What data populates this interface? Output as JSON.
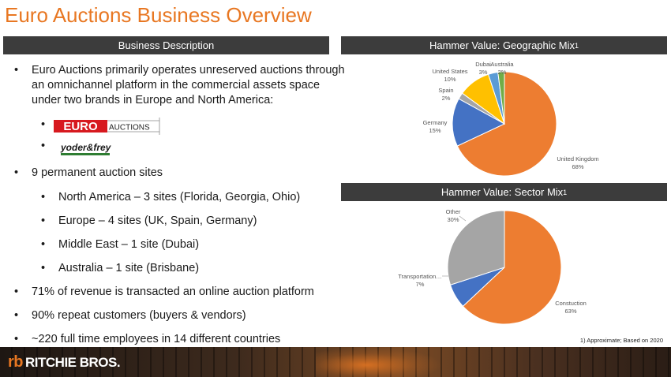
{
  "title": "Euro Auctions Business Overview",
  "headers": {
    "description": "Business Description",
    "geo": "Hammer Value: Geographic Mix",
    "sector": "Hammer Value: Sector Mix",
    "superscript": "1"
  },
  "description": {
    "items": [
      {
        "level": 1,
        "text": "Euro Auctions primarily operates unreserved auctions through an omnichannel platform in the commercial assets space under two brands in Europe and North America:"
      },
      {
        "level": 2,
        "text": ""
      },
      {
        "level": 2,
        "text": ""
      },
      {
        "level": 1,
        "text": "9 permanent auction sites"
      },
      {
        "level": 2,
        "text": "North America – 3 sites (Florida, Georgia, Ohio)"
      },
      {
        "level": 2,
        "text": "Europe – 4 sites (UK, Spain, Germany)"
      },
      {
        "level": 2,
        "text": "Middle East – 1 site (Dubai)"
      },
      {
        "level": 2,
        "text": "Australia – 1 site (Brisbane)"
      },
      {
        "level": 1,
        "text": "71% of revenue is transacted an online auction platform"
      },
      {
        "level": 1,
        "text": "90% repeat customers (buyers & vendors)"
      },
      {
        "level": 1,
        "text": "~220 full time employees in 14 different countries"
      }
    ],
    "bullet": "•"
  },
  "logos": {
    "euro_a": "EURO",
    "euro_b": "AUCTIONS",
    "yf": "yoder&frey"
  },
  "chart_data": [
    {
      "type": "pie",
      "title": "Hammer Value: Geographic Mix",
      "slices": [
        {
          "label": "United Kingdom",
          "pct_label": "68%",
          "value": 68,
          "color": "#ed7d31"
        },
        {
          "label": "Germany",
          "pct_label": "15%",
          "value": 15,
          "color": "#4472c4"
        },
        {
          "label": "Spain",
          "pct_label": "2%",
          "value": 2,
          "color": "#a5a5a5"
        },
        {
          "label": "United States",
          "pct_label": "10%",
          "value": 10,
          "color": "#ffc000"
        },
        {
          "label": "Dubai",
          "pct_label": "3%",
          "value": 3,
          "color": "#5b9bd5"
        },
        {
          "label": "Australia",
          "pct_label": "2%",
          "value": 2,
          "color": "#70ad47"
        }
      ]
    },
    {
      "type": "pie",
      "title": "Hammer Value: Sector Mix",
      "slices": [
        {
          "label": "Constuction",
          "pct_label": "63%",
          "value": 63,
          "color": "#ed7d31"
        },
        {
          "label": "Transportation…",
          "pct_label": "7%",
          "value": 7,
          "color": "#4472c4"
        },
        {
          "label": "Other",
          "pct_label": "30%",
          "value": 30,
          "color": "#a5a5a5"
        }
      ]
    }
  ],
  "footnote": "1) Approximate; Based on 2020",
  "footer": {
    "brand": "RITCHIE BROS.",
    "mark": "rb"
  }
}
